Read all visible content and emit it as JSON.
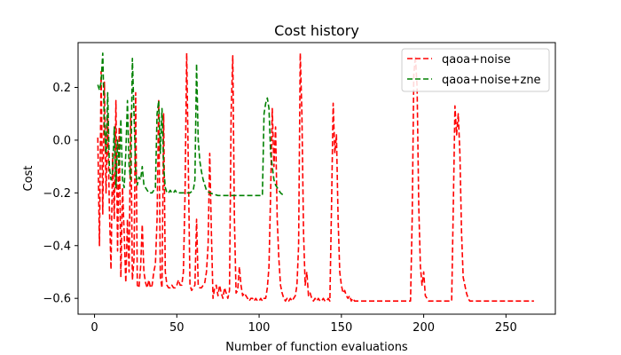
{
  "chart_data": {
    "type": "line",
    "title": "Cost history",
    "xlabel": "Number of function evaluations",
    "ylabel": "Cost",
    "xlim": [
      -10,
      280
    ],
    "ylim": [
      -0.66,
      0.37
    ],
    "x_ticks": [
      0,
      50,
      100,
      150,
      200,
      250
    ],
    "y_ticks": [
      -0.6,
      -0.4,
      -0.2,
      0.0,
      0.2
    ],
    "x_tick_labels": [
      "0",
      "50",
      "100",
      "150",
      "200",
      "250"
    ],
    "y_tick_labels": [
      "−0.6",
      "−0.4",
      "−0.2",
      "0.0",
      "0.2"
    ],
    "grid": false,
    "legend_position": "top-right",
    "series": [
      {
        "name": "qaoa+noise",
        "color": "#ff0000",
        "style": "dashed",
        "points": [
          [
            2,
            0.01
          ],
          [
            3,
            -0.4
          ],
          [
            4,
            0.26
          ],
          [
            5,
            -0.28
          ],
          [
            6,
            0.22
          ],
          [
            7,
            -0.2
          ],
          [
            8,
            0.1
          ],
          [
            9,
            -0.25
          ],
          [
            10,
            -0.49
          ],
          [
            11,
            -0.05
          ],
          [
            12,
            -0.3
          ],
          [
            13,
            0.15
          ],
          [
            14,
            -0.42
          ],
          [
            15,
            0.05
          ],
          [
            16,
            -0.52
          ],
          [
            17,
            -0.18
          ],
          [
            18,
            -0.35
          ],
          [
            19,
            -0.54
          ],
          [
            20,
            -0.3
          ],
          [
            21,
            -0.5
          ],
          [
            22,
            0.1
          ],
          [
            23,
            -0.53
          ],
          [
            24,
            -0.45
          ],
          [
            25,
            0.18
          ],
          [
            26,
            -0.55
          ],
          [
            27,
            -0.56
          ],
          [
            28,
            -0.48
          ],
          [
            29,
            -0.32
          ],
          [
            30,
            -0.5
          ],
          [
            31,
            -0.54
          ],
          [
            32,
            -0.56
          ],
          [
            33,
            -0.53
          ],
          [
            34,
            -0.56
          ],
          [
            35,
            -0.55
          ],
          [
            36,
            -0.5
          ],
          [
            37,
            -0.47
          ],
          [
            38,
            -0.3
          ],
          [
            39,
            0.15
          ],
          [
            40,
            -0.52
          ],
          [
            41,
            -0.56
          ],
          [
            42,
            0.1
          ],
          [
            43,
            -0.5
          ],
          [
            44,
            -0.55
          ],
          [
            45,
            -0.56
          ],
          [
            46,
            -0.56
          ],
          [
            47,
            -0.55
          ],
          [
            48,
            -0.56
          ],
          [
            49,
            -0.56
          ],
          [
            50,
            -0.55
          ],
          [
            51,
            -0.53
          ],
          [
            52,
            -0.55
          ],
          [
            53,
            -0.55
          ],
          [
            54,
            -0.5
          ],
          [
            55,
            -0.2
          ],
          [
            56,
            0.33
          ],
          [
            57,
            -0.1
          ],
          [
            58,
            -0.55
          ],
          [
            59,
            -0.57
          ],
          [
            60,
            -0.56
          ],
          [
            61,
            -0.55
          ],
          [
            62,
            -0.3
          ],
          [
            63,
            -0.55
          ],
          [
            64,
            -0.56
          ],
          [
            65,
            -0.56
          ],
          [
            66,
            -0.55
          ],
          [
            67,
            -0.54
          ],
          [
            68,
            -0.5
          ],
          [
            69,
            -0.4
          ],
          [
            70,
            -0.05
          ],
          [
            71,
            -0.35
          ],
          [
            72,
            -0.6
          ],
          [
            73,
            -0.56
          ],
          [
            74,
            -0.55
          ],
          [
            75,
            -0.59
          ],
          [
            76,
            -0.55
          ],
          [
            77,
            -0.58
          ],
          [
            78,
            -0.6
          ],
          [
            79,
            -0.56
          ],
          [
            80,
            -0.58
          ],
          [
            81,
            -0.6
          ],
          [
            82,
            -0.57
          ],
          [
            83,
            0.1
          ],
          [
            84,
            0.32
          ],
          [
            85,
            -0.3
          ],
          [
            86,
            -0.58
          ],
          [
            87,
            -0.57
          ],
          [
            88,
            -0.48
          ],
          [
            89,
            -0.55
          ],
          [
            90,
            -0.59
          ],
          [
            91,
            -0.58
          ],
          [
            92,
            -0.59
          ],
          [
            93,
            -0.6
          ],
          [
            94,
            -0.61
          ],
          [
            95,
            -0.6
          ],
          [
            96,
            -0.6
          ],
          [
            97,
            -0.61
          ],
          [
            98,
            -0.6
          ],
          [
            99,
            -0.61
          ],
          [
            100,
            -0.61
          ],
          [
            101,
            -0.6
          ],
          [
            102,
            -0.61
          ],
          [
            103,
            -0.6
          ],
          [
            104,
            -0.6
          ],
          [
            105,
            -0.56
          ],
          [
            106,
            -0.48
          ],
          [
            107,
            -0.2
          ],
          [
            108,
            0.12
          ],
          [
            109,
            -0.1
          ],
          [
            110,
            0.05
          ],
          [
            111,
            -0.3
          ],
          [
            112,
            -0.45
          ],
          [
            113,
            -0.55
          ],
          [
            114,
            -0.58
          ],
          [
            115,
            -0.6
          ],
          [
            116,
            -0.61
          ],
          [
            117,
            -0.6
          ],
          [
            118,
            -0.61
          ],
          [
            119,
            -0.6
          ],
          [
            120,
            -0.61
          ],
          [
            121,
            -0.6
          ],
          [
            122,
            -0.59
          ],
          [
            123,
            -0.55
          ],
          [
            124,
            -0.4
          ],
          [
            125,
            0.33
          ],
          [
            126,
            0.1
          ],
          [
            127,
            -0.35
          ],
          [
            128,
            -0.55
          ],
          [
            129,
            -0.5
          ],
          [
            130,
            -0.59
          ],
          [
            131,
            -0.58
          ],
          [
            132,
            -0.6
          ],
          [
            133,
            -0.61
          ],
          [
            134,
            -0.6
          ],
          [
            135,
            -0.61
          ],
          [
            136,
            -0.6
          ],
          [
            137,
            -0.61
          ],
          [
            138,
            -0.61
          ],
          [
            139,
            -0.6
          ],
          [
            140,
            -0.61
          ],
          [
            141,
            -0.61
          ],
          [
            142,
            -0.6
          ],
          [
            143,
            -0.61
          ],
          [
            144,
            -0.25
          ],
          [
            145,
            0.14
          ],
          [
            146,
            -0.05
          ],
          [
            147,
            0.02
          ],
          [
            148,
            -0.3
          ],
          [
            149,
            -0.5
          ],
          [
            150,
            -0.55
          ],
          [
            151,
            -0.58
          ],
          [
            152,
            -0.57
          ],
          [
            153,
            -0.59
          ],
          [
            154,
            -0.6
          ],
          [
            155,
            -0.59
          ],
          [
            156,
            -0.61
          ],
          [
            157,
            -0.6
          ],
          [
            158,
            -0.61
          ],
          [
            160,
            -0.61
          ],
          [
            170,
            -0.61
          ],
          [
            180,
            -0.61
          ],
          [
            190,
            -0.61
          ],
          [
            192,
            -0.61
          ],
          [
            193,
            -0.3
          ],
          [
            194,
            0.25
          ],
          [
            195,
            0.32
          ],
          [
            196,
            0.2
          ],
          [
            197,
            -0.25
          ],
          [
            198,
            -0.48
          ],
          [
            199,
            -0.55
          ],
          [
            200,
            -0.5
          ],
          [
            201,
            -0.59
          ],
          [
            202,
            -0.6
          ],
          [
            203,
            -0.61
          ],
          [
            205,
            -0.61
          ],
          [
            210,
            -0.61
          ],
          [
            215,
            -0.61
          ],
          [
            217,
            -0.61
          ],
          [
            218,
            -0.25
          ],
          [
            219,
            0.13
          ],
          [
            220,
            0.02
          ],
          [
            221,
            0.1
          ],
          [
            222,
            -0.05
          ],
          [
            223,
            -0.35
          ],
          [
            224,
            -0.52
          ],
          [
            225,
            -0.55
          ],
          [
            226,
            -0.58
          ],
          [
            227,
            -0.6
          ],
          [
            228,
            -0.61
          ],
          [
            230,
            -0.61
          ],
          [
            240,
            -0.61
          ],
          [
            250,
            -0.61
          ],
          [
            260,
            -0.61
          ],
          [
            267,
            -0.61
          ]
        ]
      },
      {
        "name": "qaoa+noise+zne",
        "color": "#008000",
        "style": "dashed",
        "points": [
          [
            2,
            0.21
          ],
          [
            3,
            0.19
          ],
          [
            4,
            0.22
          ],
          [
            5,
            0.33
          ],
          [
            6,
            0.05
          ],
          [
            7,
            -0.05
          ],
          [
            8,
            0.18
          ],
          [
            9,
            -0.1
          ],
          [
            10,
            -0.15
          ],
          [
            11,
            -0.12
          ],
          [
            12,
            0.05
          ],
          [
            13,
            -0.18
          ],
          [
            14,
            0.0
          ],
          [
            15,
            -0.1
          ],
          [
            16,
            0.08
          ],
          [
            17,
            -0.15
          ],
          [
            18,
            -0.18
          ],
          [
            19,
            -0.05
          ],
          [
            20,
            0.15
          ],
          [
            21,
            -0.1
          ],
          [
            22,
            -0.15
          ],
          [
            23,
            0.31
          ],
          [
            24,
            0.1
          ],
          [
            25,
            -0.12
          ],
          [
            26,
            -0.17
          ],
          [
            27,
            -0.14
          ],
          [
            28,
            -0.15
          ],
          [
            29,
            -0.1
          ],
          [
            30,
            -0.17
          ],
          [
            31,
            -0.18
          ],
          [
            32,
            -0.19
          ],
          [
            33,
            -0.2
          ],
          [
            34,
            -0.2
          ],
          [
            35,
            -0.2
          ],
          [
            36,
            -0.19
          ],
          [
            37,
            -0.18
          ],
          [
            38,
            0.1
          ],
          [
            39,
            0.15
          ],
          [
            40,
            -0.05
          ],
          [
            41,
            0.12
          ],
          [
            42,
            -0.1
          ],
          [
            43,
            -0.18
          ],
          [
            44,
            -0.2
          ],
          [
            45,
            -0.2
          ],
          [
            46,
            -0.19
          ],
          [
            47,
            -0.2
          ],
          [
            48,
            -0.2
          ],
          [
            49,
            -0.19
          ],
          [
            50,
            -0.2
          ],
          [
            52,
            -0.2
          ],
          [
            55,
            -0.2
          ],
          [
            58,
            -0.2
          ],
          [
            60,
            -0.19
          ],
          [
            61,
            -0.15
          ],
          [
            62,
            0.29
          ],
          [
            63,
            0.0
          ],
          [
            64,
            -0.08
          ],
          [
            65,
            -0.12
          ],
          [
            66,
            -0.15
          ],
          [
            67,
            -0.17
          ],
          [
            68,
            -0.19
          ],
          [
            70,
            -0.2
          ],
          [
            75,
            -0.21
          ],
          [
            80,
            -0.21
          ],
          [
            85,
            -0.21
          ],
          [
            90,
            -0.21
          ],
          [
            95,
            -0.21
          ],
          [
            100,
            -0.21
          ],
          [
            102,
            -0.21
          ],
          [
            103,
            0.1
          ],
          [
            104,
            0.14
          ],
          [
            105,
            0.16
          ],
          [
            106,
            0.12
          ],
          [
            107,
            -0.05
          ],
          [
            108,
            -0.1
          ],
          [
            109,
            -0.15
          ],
          [
            110,
            -0.17
          ],
          [
            111,
            -0.18
          ],
          [
            112,
            -0.19
          ],
          [
            113,
            -0.2
          ],
          [
            115,
            -0.21
          ]
        ]
      }
    ]
  }
}
